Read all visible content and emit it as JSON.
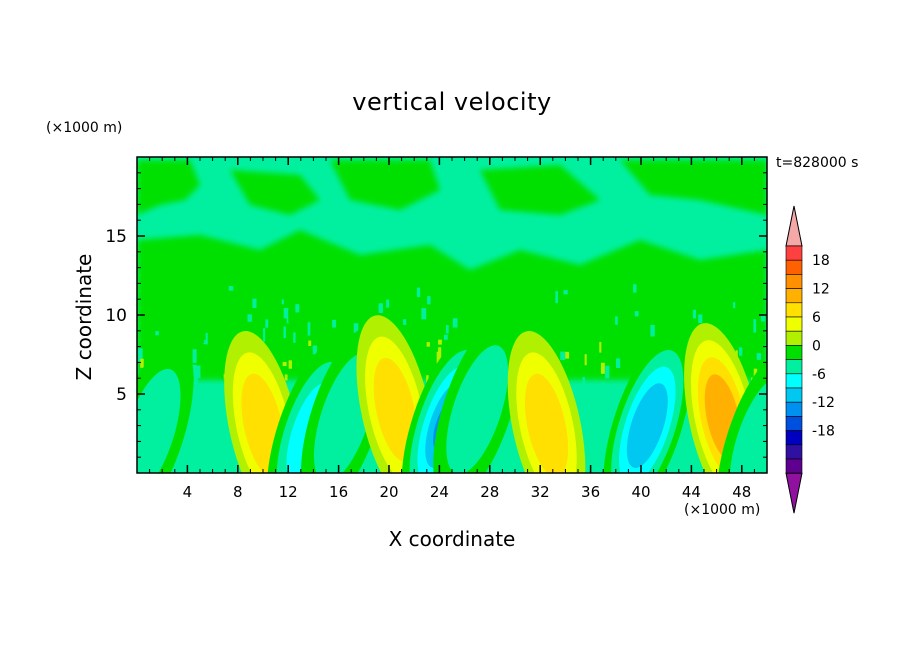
{
  "chart_data": {
    "type": "heatmap",
    "title": "vertical velocity",
    "xlabel": "X coordinate",
    "ylabel": "Z coordinate",
    "x_unit": "(×1000 m)",
    "y_unit": "(×1000 m)",
    "time_label": "t=828000 s",
    "xlim": [
      0,
      50
    ],
    "ylim": [
      0,
      20
    ],
    "x_ticks": [
      4,
      8,
      12,
      16,
      20,
      24,
      28,
      32,
      36,
      40,
      44,
      48
    ],
    "y_ticks": [
      5,
      10,
      15
    ],
    "colorbar": {
      "ticks": [
        18,
        12,
        6,
        0,
        -6,
        -12,
        -18
      ],
      "levels": [
        21,
        18,
        15,
        12,
        9,
        6,
        3,
        0,
        -3,
        -6,
        -9,
        -12,
        -15,
        -18,
        -21
      ],
      "colors": [
        "#ff4040",
        "#ff6000",
        "#ff9000",
        "#ffb000",
        "#ffe000",
        "#f0ff00",
        "#b0f000",
        "#00e000",
        "#00f0a0",
        "#00ffff",
        "#00c8f0",
        "#0090f0",
        "#0050e0",
        "#0000c0",
        "#3010a0",
        "#600090"
      ],
      "over_color": "#f4a8a8",
      "under_color": "#9010a0"
    },
    "features": [
      {
        "x": 10,
        "z": 3,
        "w": 9
      },
      {
        "x": 13.8,
        "z": 2.5,
        "w": -8
      },
      {
        "x": 16.5,
        "z": 3.5,
        "w": -4
      },
      {
        "x": 20.5,
        "z": 4,
        "w": 7
      },
      {
        "x": 24.5,
        "z": 3,
        "w": -12
      },
      {
        "x": 27,
        "z": 4,
        "w": -5
      },
      {
        "x": 32.5,
        "z": 3,
        "w": 7
      },
      {
        "x": 40.5,
        "z": 3,
        "w": -10
      },
      {
        "x": 46.5,
        "z": 3.5,
        "w": 10
      },
      {
        "x": 1,
        "z": 2.5,
        "w": -5
      },
      {
        "x": 49.5,
        "z": 2,
        "w": -4
      }
    ]
  }
}
